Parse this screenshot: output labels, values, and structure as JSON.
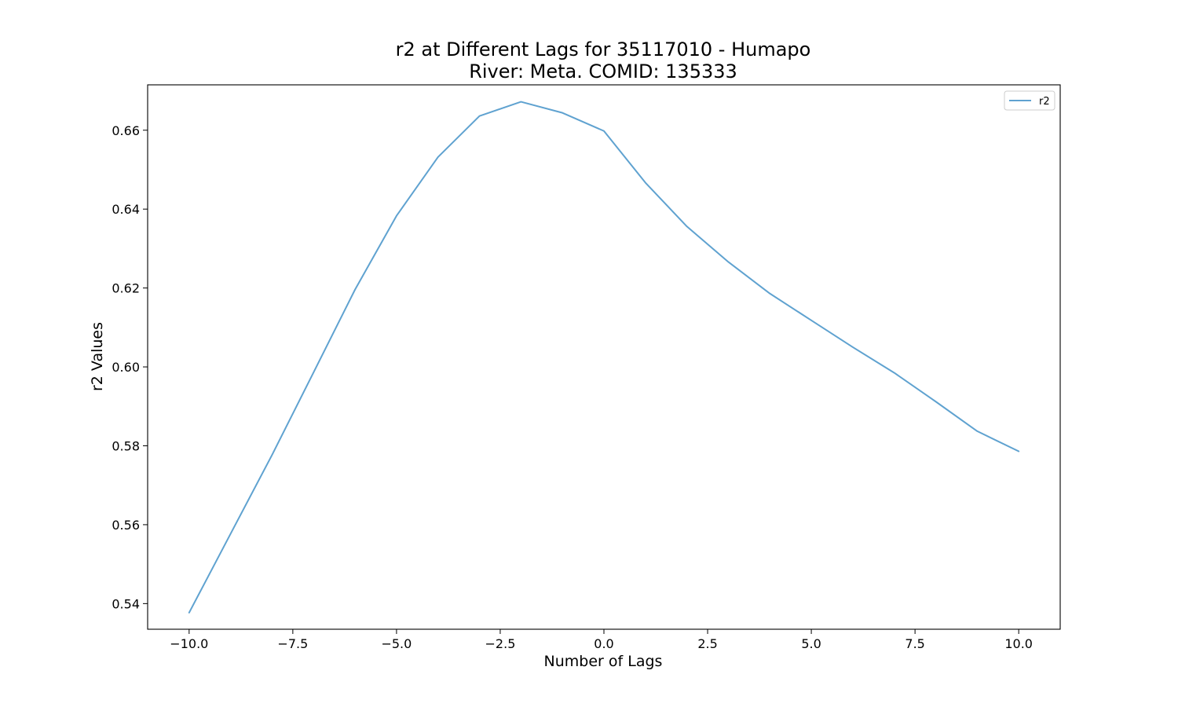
{
  "chart_data": {
    "type": "line",
    "title_line1": "r2 at Different Lags for 35117010 - Humapo",
    "title_line2": "River: Meta. COMID: 135333",
    "xlabel": "Number of Lags",
    "ylabel": "r2 Values",
    "xlim": [
      -11,
      11
    ],
    "ylim": [
      0.5335,
      0.6715
    ],
    "xticks": [
      -10.0,
      -7.5,
      -5.0,
      -2.5,
      0.0,
      2.5,
      5.0,
      7.5,
      10.0
    ],
    "xtick_labels": [
      "−10.0",
      "−7.5",
      "−5.0",
      "−2.5",
      "0.0",
      "2.5",
      "5.0",
      "7.5",
      "10.0"
    ],
    "yticks": [
      0.54,
      0.56,
      0.58,
      0.6,
      0.62,
      0.64,
      0.66
    ],
    "ytick_labels": [
      "0.54",
      "0.56",
      "0.58",
      "0.60",
      "0.62",
      "0.64",
      "0.66"
    ],
    "grid": false,
    "legend_position": "top-right",
    "series": [
      {
        "name": "r2",
        "color": "#5fa2d0",
        "x": [
          -10,
          -9,
          -8,
          -7,
          -6,
          -5,
          -4,
          -3,
          -2,
          -1,
          0,
          1,
          2,
          3,
          4,
          5,
          6,
          7,
          8,
          9,
          10
        ],
        "values": [
          0.5377,
          0.5577,
          0.5777,
          0.5986,
          0.6196,
          0.6383,
          0.6532,
          0.6636,
          0.6672,
          0.6644,
          0.6598,
          0.6467,
          0.6356,
          0.6266,
          0.6186,
          0.6118,
          0.605,
          0.5985,
          0.5912,
          0.5837,
          0.5786
        ]
      }
    ]
  }
}
